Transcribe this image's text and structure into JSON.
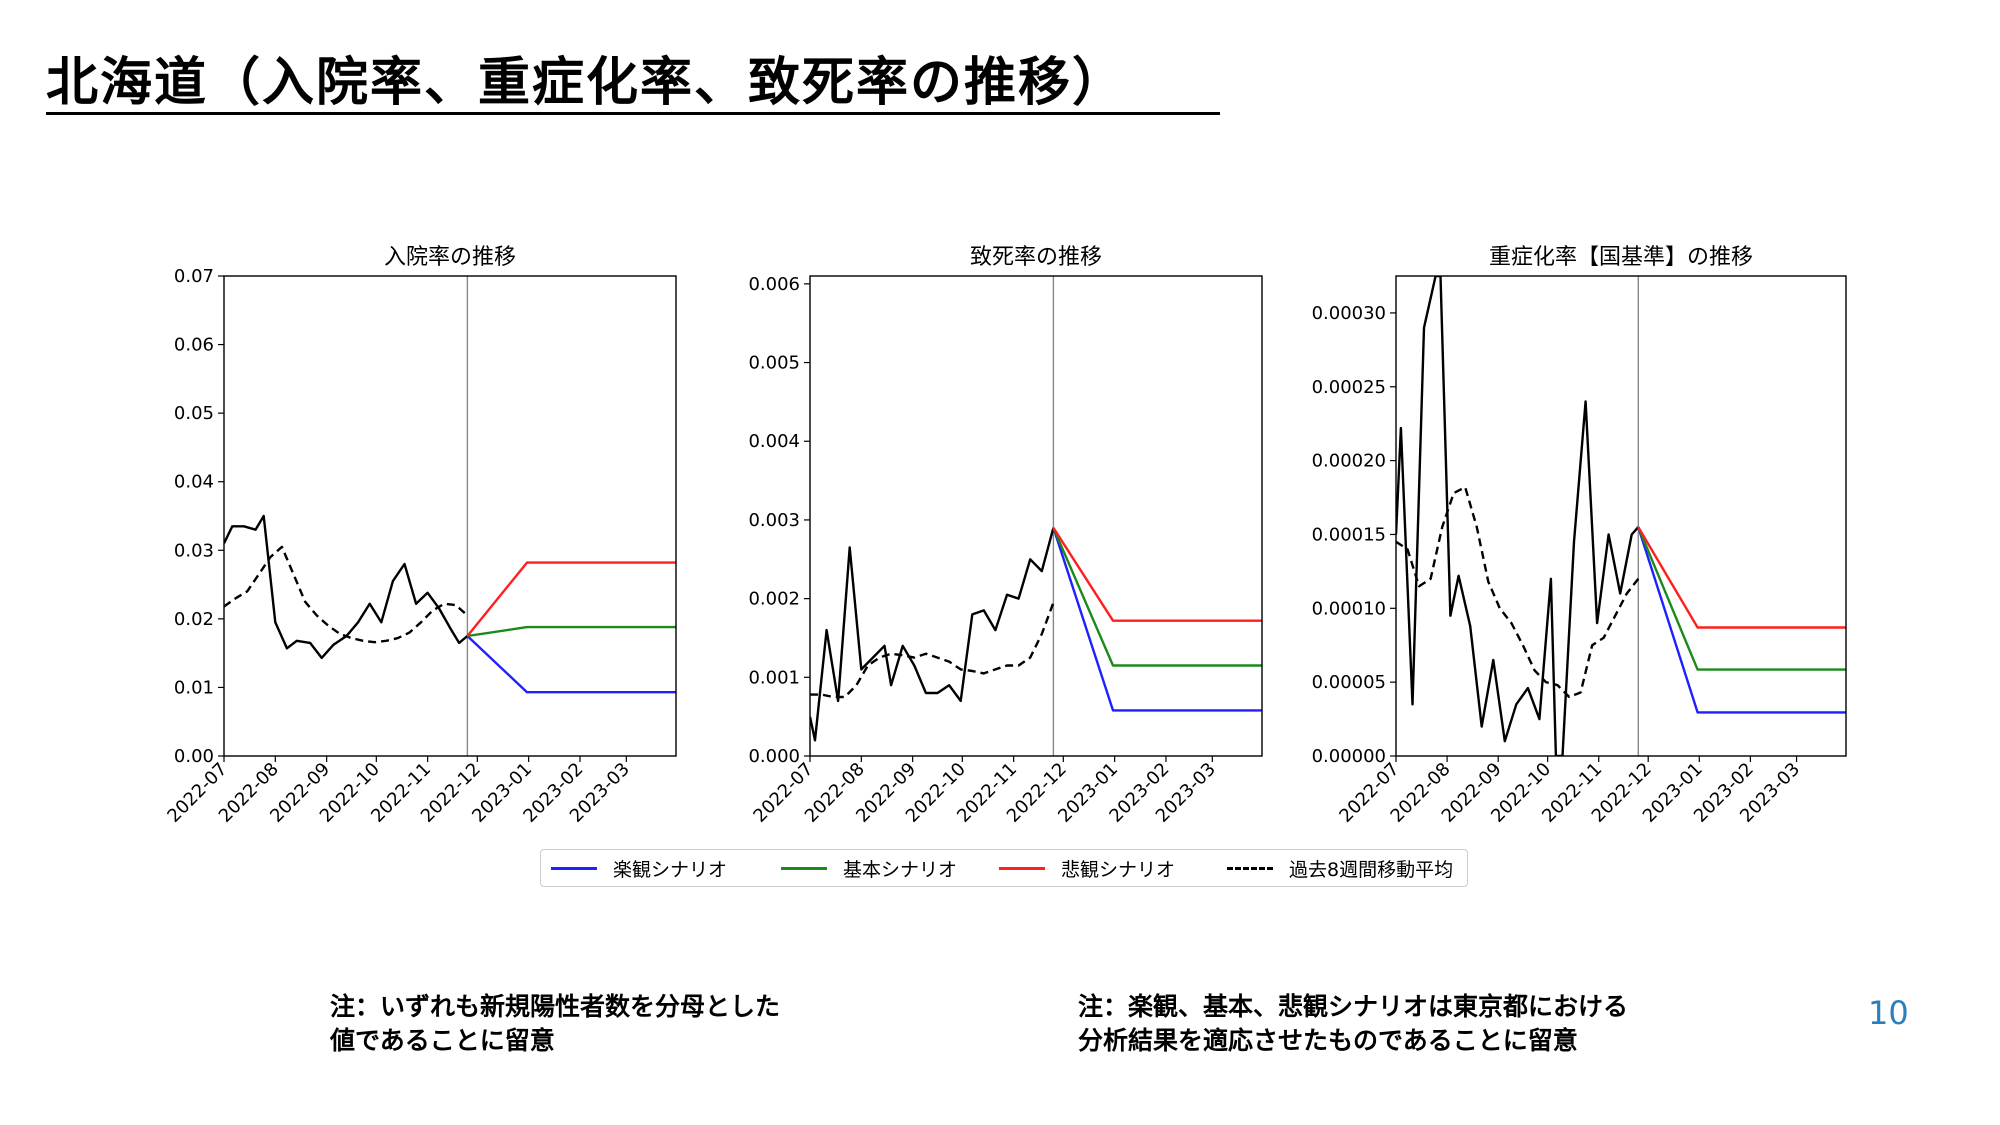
{
  "page": {
    "title": "北海道（入院率、重症化率、致死率の推移）",
    "page_number": "10",
    "note_left": [
      "注：いずれも新規陽性者数を分母とした",
      "値であることに留意"
    ],
    "note_right": [
      "注：楽観、基本、悲観シナリオは東京都における",
      "分析結果を適応させたものであることに留意"
    ]
  },
  "colors": {
    "optimistic": "#1f1fff",
    "base": "#1a8a1a",
    "pessimistic": "#ff1f1f",
    "moving_avg": "#000000",
    "actual": "#000000",
    "page_number": "#2a7fbf"
  },
  "legend": [
    {
      "label": "楽観シナリオ",
      "color": "#1f1fff",
      "style": "solid"
    },
    {
      "label": "基本シナリオ",
      "color": "#1a8a1a",
      "style": "solid"
    },
    {
      "label": "悲観シナリオ",
      "color": "#ff1f1f",
      "style": "solid"
    },
    {
      "label": "過去8週間移動平均",
      "color": "#000000",
      "style": "dashed"
    }
  ],
  "chart_data": [
    {
      "type": "line",
      "title": "入院率の推移",
      "xlabel": "",
      "ylabel": "",
      "xlim": [
        "2022-07-01",
        "2023-03-31"
      ],
      "split_date": "2022-11-25",
      "ylim": [
        0,
        0.07
      ],
      "yticks": [
        0.0,
        0.01,
        0.02,
        0.03,
        0.04,
        0.05,
        0.06,
        0.07
      ],
      "ytick_labels": [
        "0.00",
        "0.01",
        "0.02",
        "0.03",
        "0.04",
        "0.05",
        "0.06",
        "0.07"
      ],
      "xtick_labels": [
        "2022-07",
        "2022-08",
        "2022-09",
        "2022-10",
        "2022-11",
        "2022-12",
        "2023-01",
        "2023-02",
        "2023-03"
      ],
      "grid": false,
      "series": [
        {
          "name": "actual",
          "style": "solid",
          "x": [
            "2022-07-01",
            "2022-07-06",
            "2022-07-13",
            "2022-07-20",
            "2022-07-25",
            "2022-08-01",
            "2022-08-08",
            "2022-08-14",
            "2022-08-22",
            "2022-08-29",
            "2022-09-05",
            "2022-09-13",
            "2022-09-20",
            "2022-09-27",
            "2022-10-04",
            "2022-10-11",
            "2022-10-18",
            "2022-10-25",
            "2022-11-01",
            "2022-11-08",
            "2022-11-15",
            "2022-11-20",
            "2022-11-25"
          ],
          "y": [
            0.031,
            0.0335,
            0.0335,
            0.033,
            0.035,
            0.0195,
            0.0157,
            0.0168,
            0.0165,
            0.0143,
            0.0162,
            0.0175,
            0.0195,
            0.0222,
            0.0195,
            0.0255,
            0.028,
            0.0222,
            0.0238,
            0.0215,
            0.0185,
            0.0165,
            0.0175
          ]
        },
        {
          "name": "過去8週間移動平均",
          "style": "dashed",
          "x": [
            "2022-07-01",
            "2022-07-08",
            "2022-07-15",
            "2022-07-22",
            "2022-07-29",
            "2022-08-05",
            "2022-08-12",
            "2022-08-19",
            "2022-08-26",
            "2022-09-02",
            "2022-09-09",
            "2022-09-16",
            "2022-09-23",
            "2022-09-30",
            "2022-10-07",
            "2022-10-14",
            "2022-10-21",
            "2022-10-28",
            "2022-11-04",
            "2022-11-11",
            "2022-11-18",
            "2022-11-25"
          ],
          "y": [
            0.0218,
            0.023,
            0.024,
            0.0265,
            0.029,
            0.0305,
            0.0265,
            0.0225,
            0.0205,
            0.019,
            0.0178,
            0.0172,
            0.0168,
            0.0166,
            0.0168,
            0.0172,
            0.018,
            0.0195,
            0.0212,
            0.0222,
            0.022,
            0.0205
          ]
        },
        {
          "name": "楽観シナリオ",
          "style": "solid",
          "x": [
            "2022-11-25",
            "2022-12-31",
            "2023-03-31"
          ],
          "y": [
            0.0175,
            0.0093,
            0.0093
          ]
        },
        {
          "name": "基本シナリオ",
          "style": "solid",
          "x": [
            "2022-11-25",
            "2022-12-31",
            "2023-03-31"
          ],
          "y": [
            0.0175,
            0.0188,
            0.0188
          ]
        },
        {
          "name": "悲観シナリオ",
          "style": "solid",
          "x": [
            "2022-11-25",
            "2022-12-31",
            "2023-03-31"
          ],
          "y": [
            0.0175,
            0.0282,
            0.0282
          ]
        }
      ]
    },
    {
      "type": "line",
      "title": "致死率の推移",
      "xlabel": "",
      "ylabel": "",
      "xlim": [
        "2022-07-01",
        "2023-03-31"
      ],
      "split_date": "2022-11-25",
      "ylim": [
        0,
        0.0061
      ],
      "yticks": [
        0.0,
        0.001,
        0.002,
        0.003,
        0.004,
        0.005,
        0.006
      ],
      "ytick_labels": [
        "0.000",
        "0.001",
        "0.002",
        "0.003",
        "0.004",
        "0.005",
        "0.006"
      ],
      "xtick_labels": [
        "2022-07",
        "2022-08",
        "2022-09",
        "2022-10",
        "2022-11",
        "2022-12",
        "2023-01",
        "2023-02",
        "2023-03"
      ],
      "grid": false,
      "series": [
        {
          "name": "actual",
          "style": "solid",
          "x": [
            "2022-07-01",
            "2022-07-04",
            "2022-07-11",
            "2022-07-18",
            "2022-07-25",
            "2022-08-01",
            "2022-08-08",
            "2022-08-15",
            "2022-08-19",
            "2022-08-26",
            "2022-09-02",
            "2022-09-09",
            "2022-09-16",
            "2022-09-23",
            "2022-09-30",
            "2022-10-07",
            "2022-10-14",
            "2022-10-21",
            "2022-10-28",
            "2022-11-04",
            "2022-11-11",
            "2022-11-18",
            "2022-11-25"
          ],
          "y": [
            0.0005,
            0.0002,
            0.0016,
            0.0007,
            0.00265,
            0.0011,
            0.00125,
            0.0014,
            0.0009,
            0.0014,
            0.00115,
            0.0008,
            0.0008,
            0.0009,
            0.0007,
            0.0018,
            0.00185,
            0.0016,
            0.00205,
            0.002,
            0.0025,
            0.00235,
            0.0029
          ]
        },
        {
          "name": "過去8週間移動平均",
          "style": "dashed",
          "x": [
            "2022-07-01",
            "2022-07-08",
            "2022-07-15",
            "2022-07-22",
            "2022-07-29",
            "2022-08-05",
            "2022-08-12",
            "2022-08-19",
            "2022-08-26",
            "2022-09-02",
            "2022-09-09",
            "2022-09-16",
            "2022-09-23",
            "2022-09-30",
            "2022-10-07",
            "2022-10-14",
            "2022-10-21",
            "2022-10-28",
            "2022-11-04",
            "2022-11-11",
            "2022-11-18",
            "2022-11-25"
          ],
          "y": [
            0.00078,
            0.00078,
            0.00075,
            0.00075,
            0.0009,
            0.00115,
            0.00125,
            0.0013,
            0.00128,
            0.00125,
            0.0013,
            0.00125,
            0.0012,
            0.0011,
            0.00108,
            0.00105,
            0.0011,
            0.00115,
            0.00115,
            0.00125,
            0.00155,
            0.00195
          ]
        },
        {
          "name": "楽観シナリオ",
          "style": "solid",
          "x": [
            "2022-11-25",
            "2022-12-31",
            "2023-03-31"
          ],
          "y": [
            0.0029,
            0.00058,
            0.00058
          ]
        },
        {
          "name": "基本シナリオ",
          "style": "solid",
          "x": [
            "2022-11-25",
            "2022-12-31",
            "2023-03-31"
          ],
          "y": [
            0.0029,
            0.00115,
            0.00115
          ]
        },
        {
          "name": "悲観シナリオ",
          "style": "solid",
          "x": [
            "2022-11-25",
            "2022-12-31",
            "2023-03-31"
          ],
          "y": [
            0.0029,
            0.00172,
            0.00172
          ]
        }
      ]
    },
    {
      "type": "line",
      "title": "重症化率【国基準】の推移",
      "xlabel": "",
      "ylabel": "",
      "xlim": [
        "2022-07-01",
        "2023-03-31"
      ],
      "split_date": "2022-11-25",
      "ylim": [
        0,
        0.000325
      ],
      "yticks": [
        0,
        5e-05,
        0.0001,
        0.00015,
        0.0002,
        0.00025,
        0.0003
      ],
      "ytick_labels": [
        "0.00000",
        "0.00005",
        "0.00010",
        "0.00015",
        "0.00020",
        "0.00025",
        "0.00030"
      ],
      "xtick_labels": [
        "2022-07",
        "2022-08",
        "2022-09",
        "2022-10",
        "2022-11",
        "2022-12",
        "2023-01",
        "2023-02",
        "2023-03"
      ],
      "grid": false,
      "series": [
        {
          "name": "actual",
          "style": "solid",
          "x": [
            "2022-07-01",
            "2022-07-04",
            "2022-07-11",
            "2022-07-18",
            "2022-07-25",
            "2022-07-28",
            "2022-08-03",
            "2022-08-08",
            "2022-08-15",
            "2022-08-22",
            "2022-08-29",
            "2022-09-05",
            "2022-09-12",
            "2022-09-19",
            "2022-09-26",
            "2022-10-03",
            "2022-10-06",
            "2022-10-10",
            "2022-10-17",
            "2022-10-24",
            "2022-10-31",
            "2022-11-07",
            "2022-11-14",
            "2022-11-21",
            "2022-11-25"
          ],
          "y": [
            0.00015,
            0.000222,
            3.5e-05,
            0.00029,
            0.000325,
            0.000325,
            9.5e-05,
            0.000122,
            8.8e-05,
            2e-05,
            6.5e-05,
            1e-05,
            3.5e-05,
            4.6e-05,
            2.5e-05,
            0.00012,
            0.0,
            0.0,
            0.000145,
            0.00024,
            9e-05,
            0.00015,
            0.00011,
            0.00015,
            0.000155
          ]
        },
        {
          "name": "過去8週間移動平均",
          "style": "dashed",
          "x": [
            "2022-07-01",
            "2022-07-08",
            "2022-07-15",
            "2022-07-22",
            "2022-07-29",
            "2022-08-05",
            "2022-08-12",
            "2022-08-19",
            "2022-08-26",
            "2022-09-02",
            "2022-09-09",
            "2022-09-16",
            "2022-09-23",
            "2022-09-30",
            "2022-10-07",
            "2022-10-14",
            "2022-10-21",
            "2022-10-28",
            "2022-11-04",
            "2022-11-11",
            "2022-11-18",
            "2022-11-25"
          ],
          "y": [
            0.000145,
            0.00014,
            0.000115,
            0.00012,
            0.000155,
            0.000178,
            0.000182,
            0.000155,
            0.000118,
            0.0001,
            9e-05,
            7.5e-05,
            5.8e-05,
            5e-05,
            4.8e-05,
            4e-05,
            4.3e-05,
            7.5e-05,
            8e-05,
            9.5e-05,
            0.00011,
            0.00012
          ]
        },
        {
          "name": "楽観シナリオ",
          "style": "solid",
          "x": [
            "2022-11-25",
            "2022-12-31",
            "2023-03-31"
          ],
          "y": [
            0.000155,
            2.95e-05,
            2.95e-05
          ]
        },
        {
          "name": "基本シナリオ",
          "style": "solid",
          "x": [
            "2022-11-25",
            "2022-12-31",
            "2023-03-31"
          ],
          "y": [
            0.000155,
            5.85e-05,
            5.85e-05
          ]
        },
        {
          "name": "悲観シナリオ",
          "style": "solid",
          "x": [
            "2022-11-25",
            "2022-12-31",
            "2023-03-31"
          ],
          "y": [
            0.000155,
            8.7e-05,
            8.7e-05
          ]
        }
      ]
    }
  ]
}
